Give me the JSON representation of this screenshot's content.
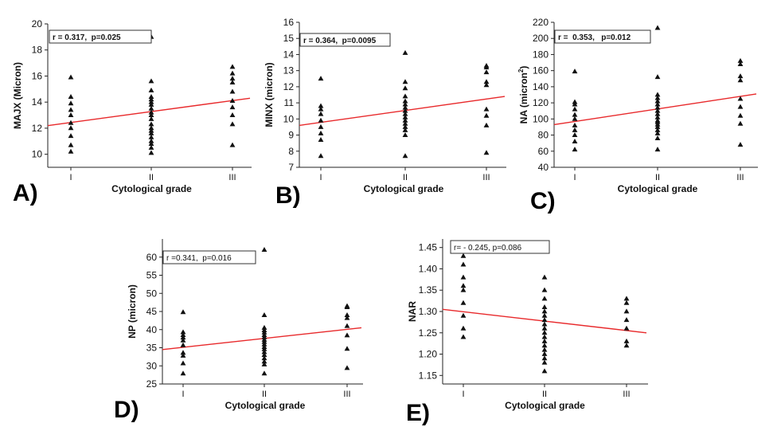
{
  "chart_data": [
    {
      "type": "scatter",
      "panel_label": "A)",
      "xlabel": "Cytological grade",
      "ylabel": "MAJX (Micron)",
      "x_ticks": [
        "I",
        "II",
        "III"
      ],
      "ylim": [
        9,
        20
      ],
      "y_ticks": [
        10,
        12,
        14,
        16,
        18,
        20
      ],
      "stats": "r = 0.317,  p=0.025",
      "fit": {
        "y_start": 12.2,
        "y_end": 14.3
      },
      "series": [
        {
          "x": "I",
          "values": [
            15.9,
            14.4,
            13.9,
            13.4,
            13.0,
            12.4,
            12.0,
            11.4,
            10.7,
            10.2
          ]
        },
        {
          "x": "II",
          "values": [
            19.0,
            15.6,
            14.9,
            14.4,
            14.2,
            14.0,
            13.8,
            13.5,
            13.2,
            13.0,
            12.7,
            12.3,
            12.0,
            11.8,
            11.6,
            11.3,
            11.0,
            10.8,
            10.5,
            10.1
          ]
        },
        {
          "x": "III",
          "values": [
            16.7,
            16.2,
            15.8,
            15.5,
            14.8,
            14.1,
            13.6,
            13.0,
            12.3,
            10.7
          ]
        }
      ]
    },
    {
      "type": "scatter",
      "panel_label": "B)",
      "xlabel": "Cytological grade",
      "ylabel": "MINX (micron)",
      "x_ticks": [
        "I",
        "II",
        "III"
      ],
      "ylim": [
        7,
        16
      ],
      "y_ticks": [
        7,
        8,
        9,
        10,
        11,
        12,
        13,
        14,
        15,
        16
      ],
      "stats": "r = 0.364,  p=0.0095",
      "fit": {
        "y_start": 9.6,
        "y_end": 11.4
      },
      "series": [
        {
          "x": "I",
          "values": [
            12.5,
            10.8,
            10.6,
            10.3,
            9.9,
            9.5,
            9.1,
            8.7,
            7.7
          ]
        },
        {
          "x": "II",
          "values": [
            14.1,
            12.3,
            11.9,
            11.4,
            11.1,
            10.9,
            10.7,
            10.5,
            10.3,
            10.1,
            9.9,
            9.7,
            9.5,
            9.3,
            9.0,
            7.7
          ]
        },
        {
          "x": "III",
          "values": [
            13.3,
            13.2,
            12.9,
            12.3,
            12.1,
            10.6,
            10.2,
            9.6,
            7.9
          ]
        }
      ]
    },
    {
      "type": "scatter",
      "panel_label": "C)",
      "xlabel": "Cytological grade",
      "ylabel": "NA (micron",
      "ylabel_sup": "2",
      "ylabel_end": ")",
      "x_ticks": [
        "I",
        "II",
        "III"
      ],
      "ylim": [
        40,
        220
      ],
      "y_ticks": [
        40,
        60,
        80,
        100,
        120,
        140,
        160,
        180,
        200,
        220
      ],
      "stats": "r =  0.353,   p=0.012",
      "fit": {
        "y_start": 93,
        "y_end": 131
      },
      "series": [
        {
          "x": "I",
          "values": [
            159,
            121,
            118,
            112,
            105,
            100,
            92,
            86,
            80,
            72,
            62
          ]
        },
        {
          "x": "II",
          "values": [
            213,
            152,
            130,
            126,
            122,
            118,
            114,
            110,
            106,
            102,
            98,
            96,
            93,
            90,
            86,
            82,
            76,
            62
          ]
        },
        {
          "x": "III",
          "values": [
            172,
            168,
            153,
            148,
            125,
            115,
            104,
            94,
            68
          ]
        }
      ]
    },
    {
      "type": "scatter",
      "panel_label": "D)",
      "xlabel": "Cytological grade",
      "ylabel": "NP (micron)",
      "x_ticks": [
        "I",
        "II",
        "III"
      ],
      "ylim": [
        25,
        65
      ],
      "y_ticks": [
        25,
        30,
        35,
        40,
        45,
        50,
        55,
        60
      ],
      "stats": "r =0.341,  p=0.016",
      "fit": {
        "y_start": 34.5,
        "y_end": 40.5
      },
      "series": [
        {
          "x": "I",
          "values": [
            44.8,
            39.3,
            38.5,
            37.8,
            37.0,
            35.7,
            33.6,
            32.8,
            30.7,
            27.9
          ]
        },
        {
          "x": "II",
          "values": [
            62.0,
            44.0,
            40.5,
            39.8,
            39.2,
            38.5,
            37.9,
            37.2,
            36.6,
            35.9,
            35.2,
            34.6,
            33.8,
            33.0,
            32.1,
            31.2,
            30.4,
            27.9
          ]
        },
        {
          "x": "III",
          "values": [
            46.5,
            46.2,
            44.0,
            43.2,
            41.0,
            38.4,
            34.7,
            29.4
          ]
        }
      ]
    },
    {
      "type": "scatter",
      "panel_label": "E)",
      "xlabel": "Cytological grade",
      "ylabel": "NAR",
      "x_ticks": [
        "I",
        "II",
        "III"
      ],
      "ylim": [
        1.13,
        1.47
      ],
      "y_ticks": [
        1.15,
        1.2,
        1.25,
        1.3,
        1.35,
        1.4,
        1.45
      ],
      "y_decimals": 2,
      "stats": "r= - 0.245, p=0.086",
      "fit": {
        "y_start": 1.305,
        "y_end": 1.25
      },
      "series": [
        {
          "x": "I",
          "values": [
            1.43,
            1.41,
            1.38,
            1.36,
            1.35,
            1.32,
            1.29,
            1.26,
            1.24
          ]
        },
        {
          "x": "II",
          "values": [
            1.38,
            1.35,
            1.33,
            1.31,
            1.3,
            1.29,
            1.28,
            1.27,
            1.26,
            1.25,
            1.24,
            1.23,
            1.22,
            1.21,
            1.2,
            1.19,
            1.18,
            1.16
          ]
        },
        {
          "x": "III",
          "values": [
            1.33,
            1.32,
            1.3,
            1.28,
            1.26,
            1.23,
            1.22
          ]
        }
      ]
    }
  ],
  "colors": {
    "fit_line": "#e8292b",
    "marker": "#111111",
    "axis": "#222222"
  }
}
